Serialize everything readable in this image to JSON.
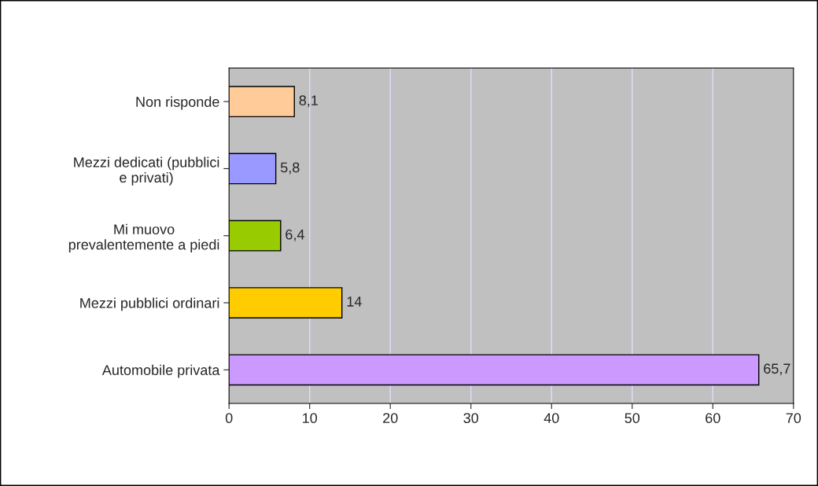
{
  "chart_data": {
    "type": "bar",
    "orientation": "horizontal",
    "categories": [
      "Non risponde",
      "Mezzi dedicati (pubblici\ne privati)",
      "Mi muovo\nprevalentemente a piedi",
      "Mezzi pubblici ordinari",
      "Automobile privata"
    ],
    "values": [
      8.1,
      5.8,
      6.4,
      14,
      65.7
    ],
    "colors": [
      "#ffcc99",
      "#9999ff",
      "#99cc00",
      "#ffcc00",
      "#cc99ff"
    ],
    "value_labels": [
      "8,1",
      "5,8",
      "6,4",
      "14",
      "65,7"
    ],
    "xlim": [
      0,
      70
    ],
    "xticks": [
      0,
      10,
      20,
      30,
      40,
      50,
      60,
      70
    ],
    "grid": "x"
  }
}
